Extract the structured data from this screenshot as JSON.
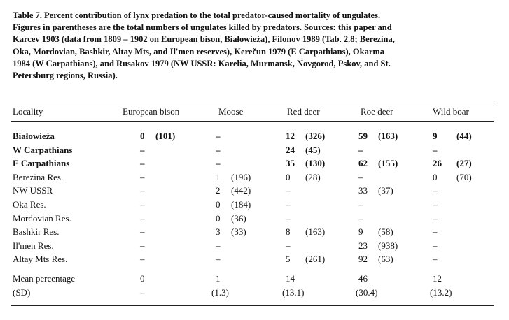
{
  "caption": [
    "Table 7. Percent contribution of lynx predation to the total predator-caused mortality of ungulates.",
    "Figures in parentheses are the total numbers of ungulates killed by predators. Sources: this paper and",
    "Karcev 1903 (data from 1809 – 1902 on European bison, Białowieża), Filonov 1989 (Tab. 2.8; Berezina,",
    "Oka, Mordovian, Bashkir, Altay Mts, and Il'men reserves), Kerečun 1979 (E Carpathians), Okarma",
    "1984 (W Carpathians), and Rusakov 1979 (NW USSR: Karelia, Murmansk, Novgorod, Pskov, and St.",
    "Petersburg regions, Russia)."
  ],
  "table": {
    "header": [
      "Locality",
      "European bison",
      "Moose",
      "Red deer",
      "Roe deer",
      "Wild boar"
    ],
    "rows": [
      [
        "Białowieża",
        [
          "0",
          "(101)"
        ],
        [
          "–"
        ],
        [
          "12",
          "(326)"
        ],
        [
          "59",
          "(163)"
        ],
        [
          "9",
          "(44)"
        ]
      ],
      [
        "W Carpathians",
        [
          "–"
        ],
        [
          "–"
        ],
        [
          "24",
          "(45)"
        ],
        [
          "–"
        ],
        [
          "–"
        ]
      ],
      [
        "E Carpathians",
        [
          "–"
        ],
        [
          "–"
        ],
        [
          "35",
          "(130)"
        ],
        [
          "62",
          "(155)"
        ],
        [
          "26",
          "(27)"
        ]
      ],
      [
        "Berezina Res.",
        [
          "–"
        ],
        [
          "1",
          "(196)"
        ],
        [
          "0",
          "(28)"
        ],
        [
          "–"
        ],
        [
          "0",
          "(70)"
        ]
      ],
      [
        "NW USSR",
        [
          "–"
        ],
        [
          "2",
          "(442)"
        ],
        [
          "–"
        ],
        [
          "33",
          "(37)"
        ],
        [
          "–"
        ]
      ],
      [
        "Oka Res.",
        [
          "–"
        ],
        [
          "0",
          "(184)"
        ],
        [
          "–"
        ],
        [
          "–"
        ],
        [
          "–"
        ]
      ],
      [
        "Mordovian Res.",
        [
          "–"
        ],
        [
          "0",
          "(36)"
        ],
        [
          "–"
        ],
        [
          "–"
        ],
        [
          "–"
        ]
      ],
      [
        "Bashkir Res.",
        [
          "–"
        ],
        [
          "3",
          "(33)"
        ],
        [
          "8",
          "(163)"
        ],
        [
          "9",
          "(58)"
        ],
        [
          "–"
        ]
      ],
      [
        "Il'men Res.",
        [
          "–"
        ],
        [
          "–"
        ],
        [
          "–"
        ],
        [
          "23",
          "(938)"
        ],
        [
          "–"
        ]
      ],
      [
        "Altay Mts Res.",
        [
          "–"
        ],
        [
          "–"
        ],
        [
          "5",
          "(261)"
        ],
        [
          "92",
          "(63)"
        ],
        [
          "–"
        ]
      ],
      [
        "Mean percentage",
        [
          "0"
        ],
        [
          "1"
        ],
        [
          "14"
        ],
        [
          "46"
        ],
        [
          "12"
        ]
      ],
      [
        "(SD)",
        [
          "–"
        ],
        [
          "(1.3)"
        ],
        [
          "(13.1)"
        ],
        [
          "(30.4)"
        ],
        [
          "(13.2)"
        ]
      ]
    ]
  }
}
